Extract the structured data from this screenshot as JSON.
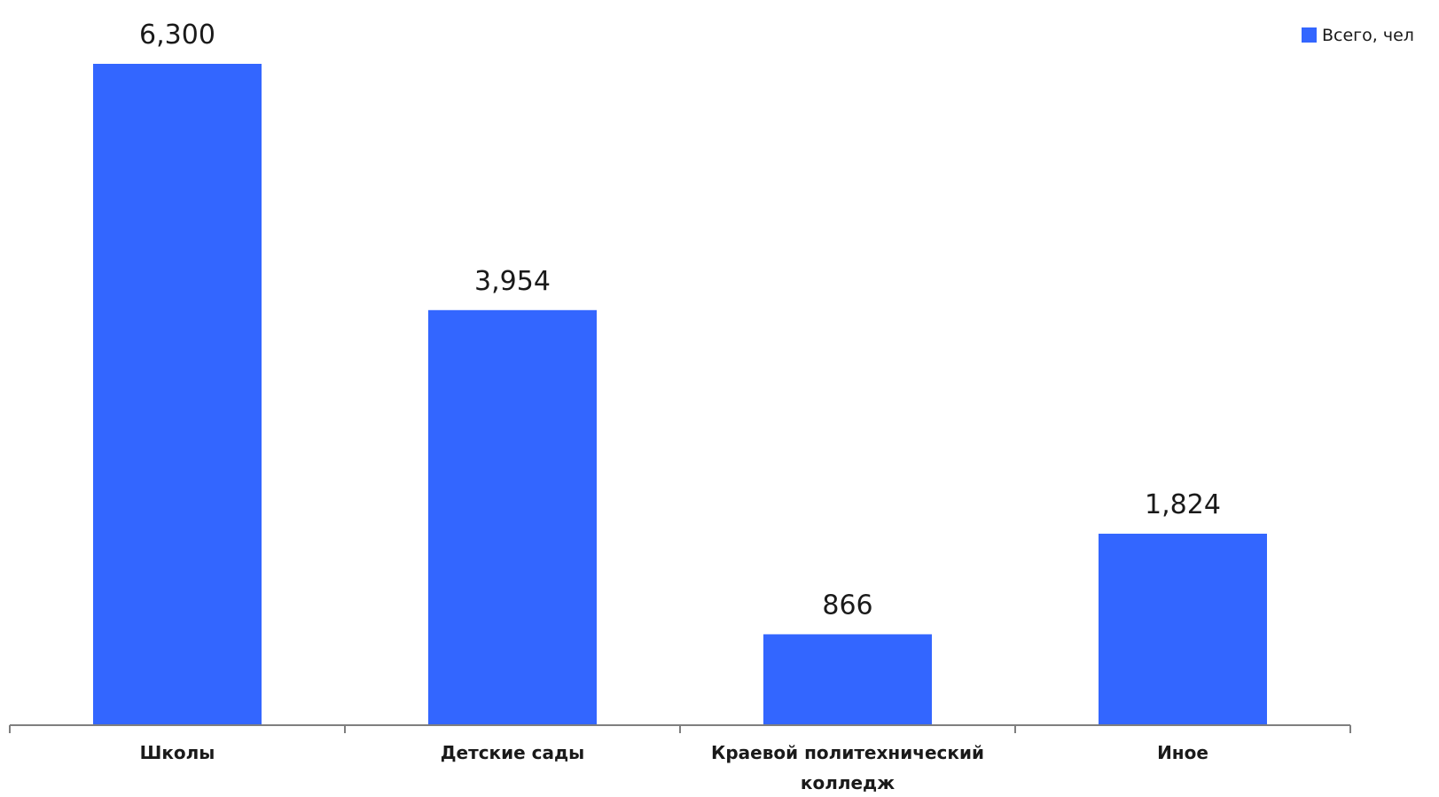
{
  "chart_data": {
    "type": "bar",
    "categories": [
      "Школы",
      "Детские сады",
      "Краевой политехнический колледж",
      "Иное"
    ],
    "category_lines": [
      [
        "Школы"
      ],
      [
        "Детские сады"
      ],
      [
        "Краевой политехнический",
        "колледж"
      ],
      [
        "Иное"
      ]
    ],
    "series": [
      {
        "name": "Всего, чел",
        "values": [
          6300,
          3954,
          866,
          1824
        ],
        "labels": [
          "6,300",
          "3,954",
          "866",
          "1,824"
        ],
        "color": "#3366ff"
      }
    ],
    "ylim": [
      0,
      6300
    ],
    "grid": false,
    "legend": "top-right"
  }
}
